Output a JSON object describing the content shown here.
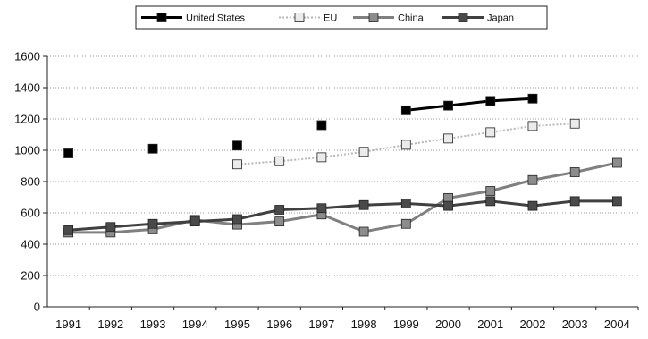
{
  "chart_data": {
    "type": "line",
    "title": "",
    "xlabel": "",
    "ylabel": "",
    "x": [
      "1991",
      "1992",
      "1993",
      "1994",
      "1995",
      "1996",
      "1997",
      "1998",
      "1999",
      "2000",
      "2001",
      "2002",
      "2003",
      "2004"
    ],
    "ylim": [
      0,
      1600
    ],
    "yticks": [
      0,
      200,
      400,
      600,
      800,
      1000,
      1200,
      1400,
      1600
    ],
    "grid": "horizontal-dotted",
    "legend_position": "top-center",
    "series": [
      {
        "name": "United States",
        "color": "#000000",
        "marker_fill": "#000000",
        "line": "solid",
        "values": [
          980,
          null,
          1010,
          null,
          1030,
          null,
          1160,
          null,
          1255,
          1285,
          1315,
          1330,
          null,
          null
        ]
      },
      {
        "name": "EU",
        "color": "#b8b8b8",
        "marker_fill": "#ebebeb",
        "line": "dotted",
        "values": [
          null,
          null,
          null,
          null,
          910,
          930,
          955,
          990,
          1035,
          1075,
          1115,
          1155,
          1170,
          null
        ]
      },
      {
        "name": "China",
        "color": "#808080",
        "marker_fill": "#8c8c8c",
        "line": "solid",
        "values": [
          475,
          475,
          495,
          555,
          525,
          545,
          590,
          480,
          530,
          695,
          740,
          810,
          860,
          920
        ]
      },
      {
        "name": "Japan",
        "color": "#404040",
        "marker_fill": "#4a4a4a",
        "line": "solid",
        "values": [
          490,
          510,
          530,
          545,
          560,
          620,
          630,
          650,
          660,
          645,
          675,
          645,
          675,
          675
        ]
      }
    ]
  }
}
